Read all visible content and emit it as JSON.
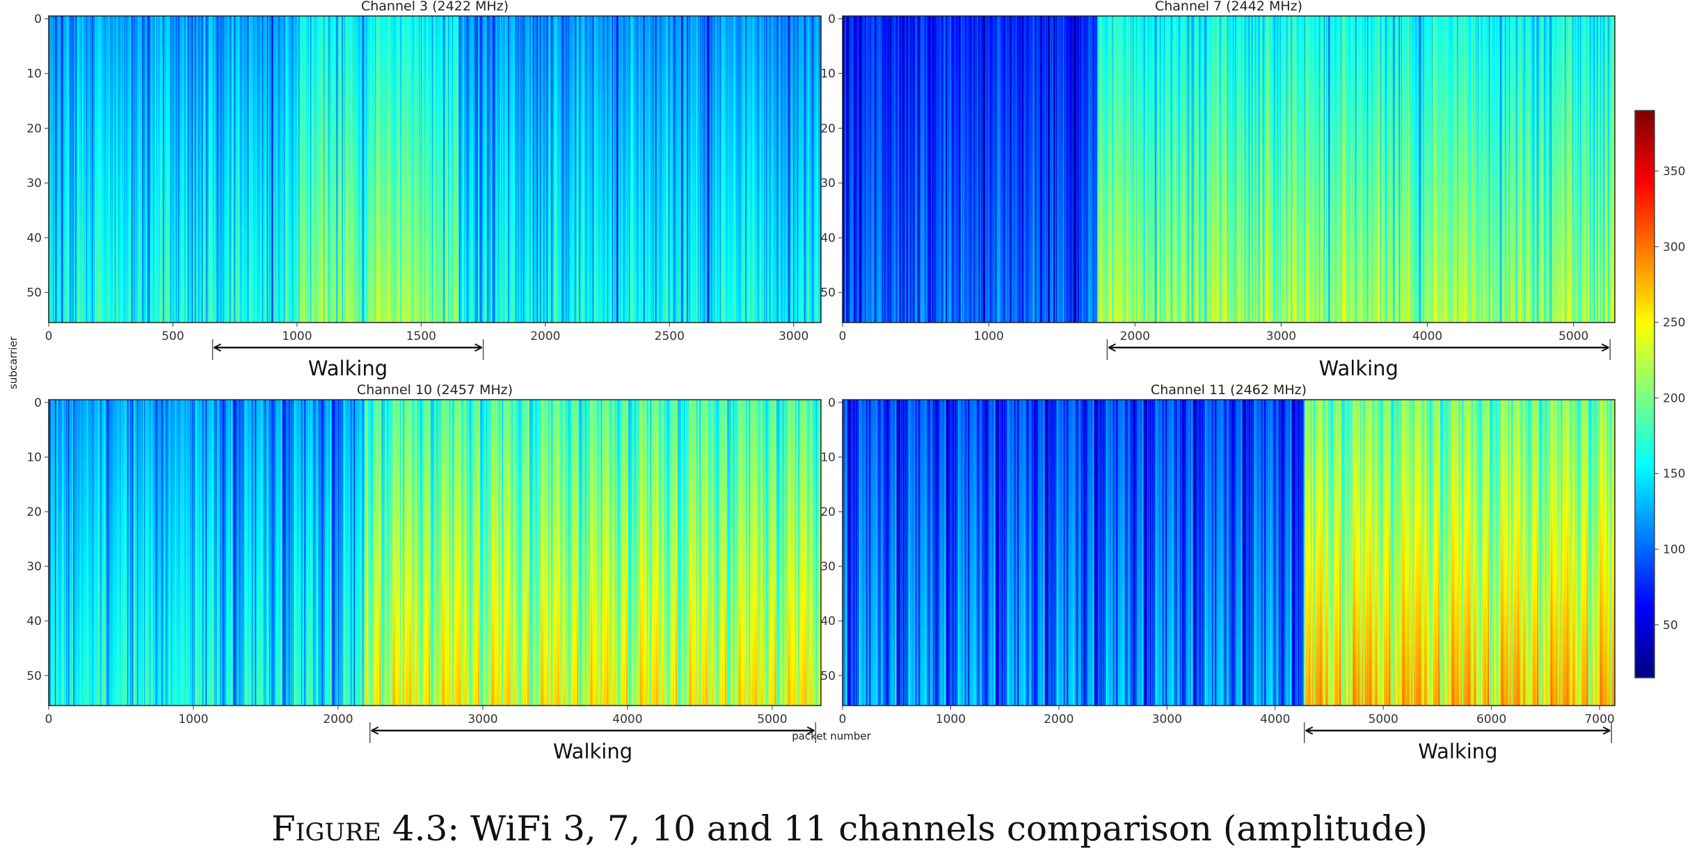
{
  "caption": {
    "label": "Figure",
    "text": "4.3: WiFi 3, 7, 10 and 11 channels comparison (amplitude)"
  },
  "colormap": "jet",
  "chart_data": [
    {
      "type": "heatmap",
      "title": "Channel 3 (2422 MHz)",
      "xlim": [
        0,
        3110
      ],
      "ylim": [
        55.5,
        -0.5
      ],
      "xticks": [
        0,
        500,
        1000,
        1500,
        2000,
        2500,
        3000
      ],
      "yticks": [
        0,
        10,
        20,
        30,
        40,
        50
      ],
      "annotation": {
        "label": "Walking",
        "x_range": [
          660,
          1750
        ]
      },
      "amplitude_segments": [
        {
          "x_range": [
            0,
            1000
          ],
          "mean": 150
        },
        {
          "x_range": [
            1000,
            1650
          ],
          "mean": 190
        },
        {
          "x_range": [
            1650,
            3110
          ],
          "mean": 145
        }
      ]
    },
    {
      "type": "heatmap",
      "title": "Channel 7 (2442 MHz)",
      "xlim": [
        0,
        5282
      ],
      "ylim": [
        55.5,
        -0.5
      ],
      "xticks": [
        0,
        1000,
        2000,
        3000,
        4000,
        5000
      ],
      "yticks": [
        0,
        10,
        20,
        30,
        40,
        50
      ],
      "annotation": {
        "label": "Walking",
        "x_range": [
          1810,
          5250
        ]
      },
      "amplitude_segments": [
        {
          "x_range": [
            0,
            1740
          ],
          "mean": 95
        },
        {
          "x_range": [
            1740,
            5282
          ],
          "mean": 195
        }
      ]
    },
    {
      "type": "heatmap",
      "title": "Channel 10 (2457 MHz)",
      "xlim": [
        0,
        5337
      ],
      "ylim": [
        55.5,
        -0.5
      ],
      "xticks": [
        0,
        1000,
        2000,
        3000,
        4000,
        5000
      ],
      "yticks": [
        0,
        10,
        20,
        30,
        40,
        50
      ],
      "annotation": {
        "label": "Walking",
        "x_range": [
          2220,
          5300
        ]
      },
      "amplitude_segments": [
        {
          "x_range": [
            0,
            2180
          ],
          "mean": 150
        },
        {
          "x_range": [
            2180,
            5337
          ],
          "mean": 225
        }
      ]
    },
    {
      "type": "heatmap",
      "title": "Channel 11 (2462 MHz)",
      "xlim": [
        0,
        7141
      ],
      "ylim": [
        55.5,
        -0.5
      ],
      "xticks": [
        0,
        1000,
        2000,
        3000,
        4000,
        5000,
        6000,
        7000
      ],
      "yticks": [
        0,
        10,
        20,
        30,
        40,
        50
      ],
      "annotation": {
        "label": "Walking",
        "x_range": [
          4270,
          7110
        ]
      },
      "amplitude_segments": [
        {
          "x_range": [
            0,
            4270
          ],
          "mean": 115
        },
        {
          "x_range": [
            4270,
            7141
          ],
          "mean": 245
        }
      ]
    }
  ],
  "shared": {
    "ylabel": "subcarrier",
    "xlabel": "packet number"
  },
  "colorbar": {
    "range": [
      15,
      390
    ],
    "ticks": [
      50,
      100,
      150,
      200,
      250,
      300,
      350
    ]
  }
}
